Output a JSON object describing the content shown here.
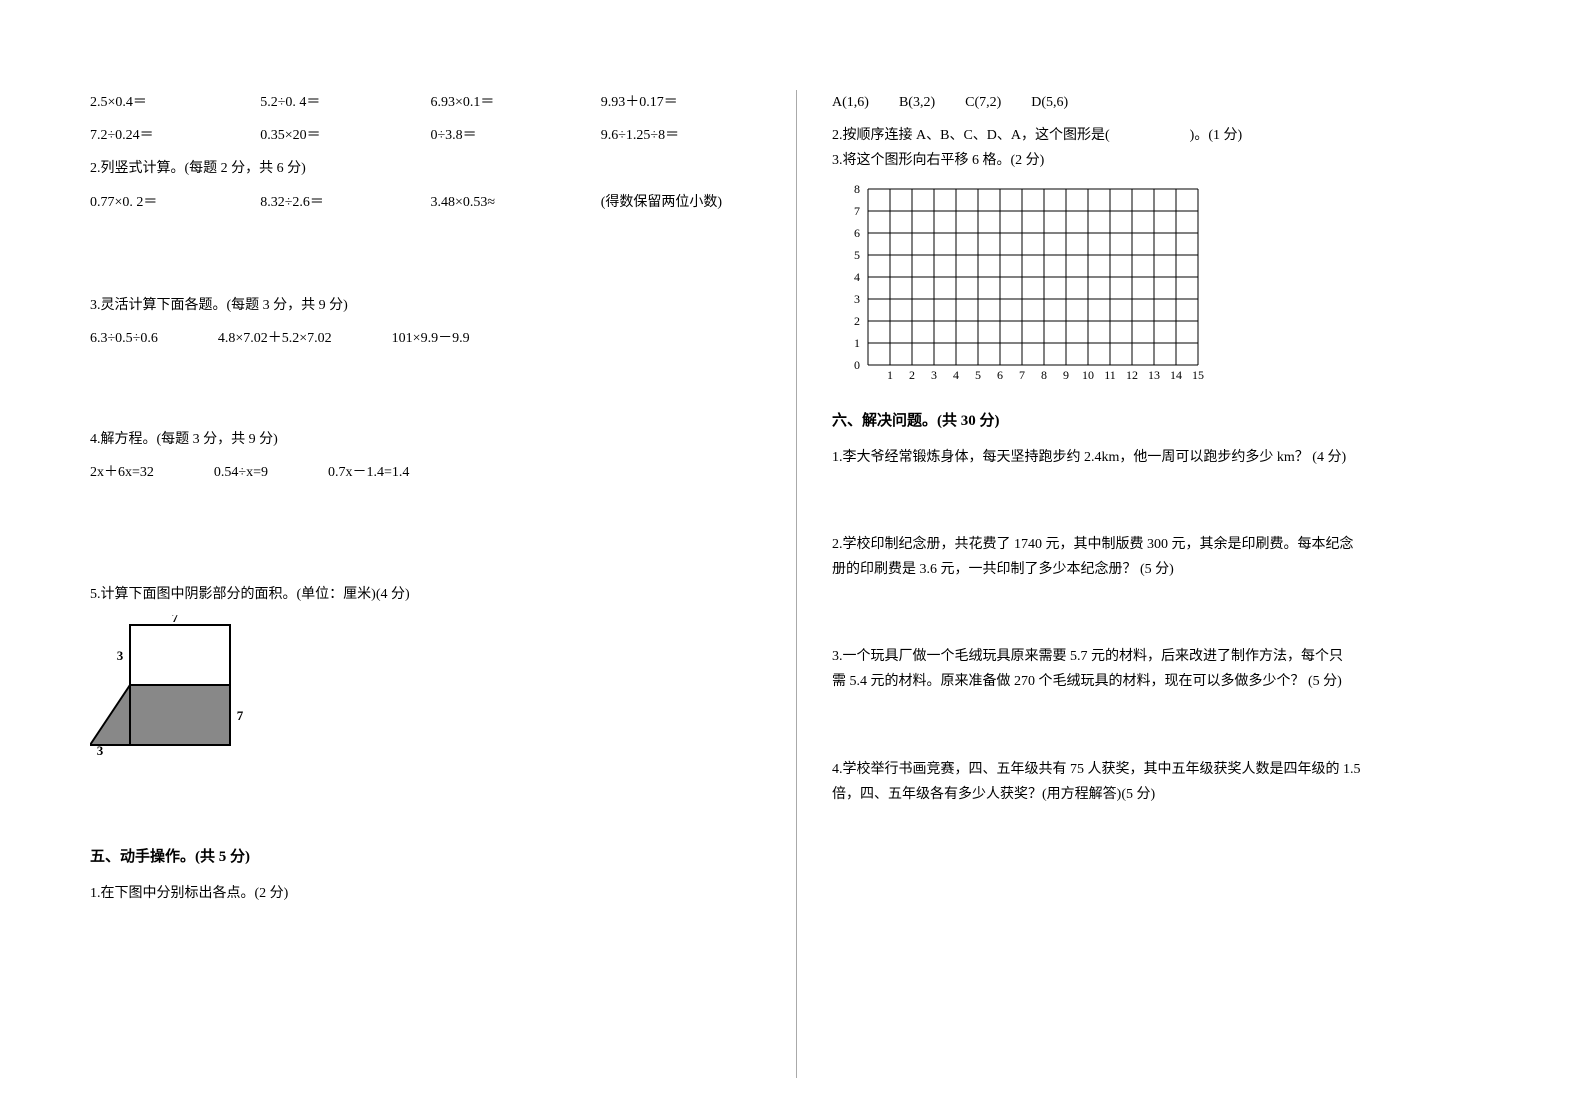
{
  "left": {
    "calc1": {
      "row1": [
        "2.5×0.4＝",
        "5.2÷0. 4＝",
        "6.93×0.1＝",
        "9.93＋0.17＝"
      ],
      "row2": [
        "7.2÷0.24＝",
        "0.35×20＝",
        "0÷3.8＝",
        "9.6÷1.25÷8＝"
      ]
    },
    "q2_title": "2.列竖式计算。(每题 2 分，共 6 分)",
    "q2_items": [
      "0.77×0. 2＝",
      "8.32÷2.6＝",
      "3.48×0.53≈",
      "(得数保留两位小数)"
    ],
    "q3_title": "3.灵活计算下面各题。(每题 3 分，共 9 分)",
    "q3_items": [
      "6.3÷0.5÷0.6",
      "4.8×7.02＋5.2×7.02",
      "101×9.9－9.9"
    ],
    "q4_title": "4.解方程。(每题 3 分，共 9 分)",
    "q4_items": [
      "2x＋6x=32",
      "0.54÷x=9",
      "0.7x－1.4=1.4"
    ],
    "q5_title": "5.计算下面图中阴影部分的面积。(单位：厘米)(4 分)",
    "geom": {
      "top_label": "7",
      "left_upper": "3",
      "right_label": "7",
      "left_lower": "3"
    },
    "sec5_title": "五、动手操作。(共 5 分)",
    "sec5_q1": "1.在下图中分别标出各点。(2 分)"
  },
  "right": {
    "points": [
      "A(1,6)",
      "B(3,2)",
      "C(7,2)",
      "D(5,6)"
    ],
    "q2_line": "2.按顺序连接 A、B、C、D、A，这个图形是(",
    "q2_suffix": ")。(1 分)",
    "q3_line": "3.将这个图形向右平移 6 格。(2 分)",
    "grid": {
      "x_ticks": [
        "1",
        "2",
        "3",
        "4",
        "5",
        "6",
        "7",
        "8",
        "9",
        "10",
        "11",
        "12",
        "13",
        "14",
        "15"
      ],
      "y_ticks": [
        "0",
        "1",
        "2",
        "3",
        "4",
        "5",
        "6",
        "7",
        "8"
      ],
      "cell": 22
    },
    "sec6_title": "六、解决问题。(共 30 分)",
    "p1": "1.李大爷经常锻炼身体，每天坚持跑步约 2.4km，他一周可以跑步约多少 km？ (4 分)",
    "p2a": "2.学校印制纪念册，共花费了 1740 元，其中制版费 300 元，其余是印刷费。每本纪念",
    "p2b": "册的印刷费是 3.6 元，一共印制了多少本纪念册？ (5 分)",
    "p3a": "3.一个玩具厂做一个毛绒玩具原来需要 5.7 元的材料，后来改进了制作方法，每个只",
    "p3b": "需 5.4 元的材料。原来准备做 270 个毛绒玩具的材料，现在可以多做多少个？ (5 分)",
    "p4a": "4.学校举行书画竞赛，四、五年级共有 75 人获奖，其中五年级获奖人数是四年级的 1.5",
    "p4b": "倍，四、五年级各有多少人获奖？(用方程解答)(5 分)"
  }
}
